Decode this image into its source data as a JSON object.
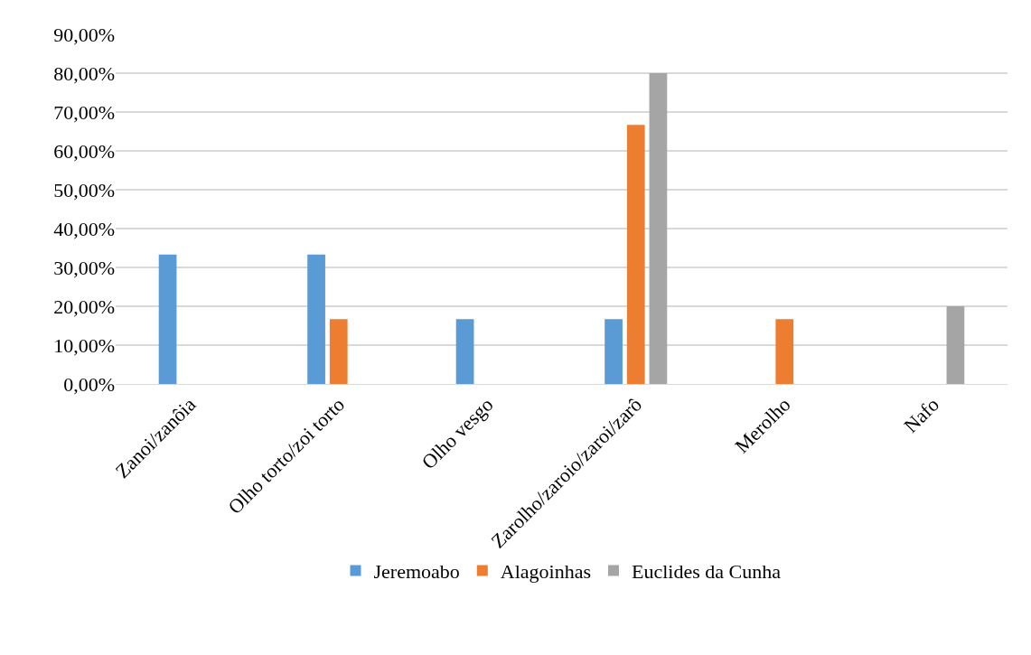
{
  "chart_data": {
    "type": "bar",
    "categories": [
      "Zanoi/zanôia",
      "Olho torto/zoi torto",
      "Olho vesgo",
      "Zarolho/zaroio/zaroi/zarô",
      "Merolho",
      "Nafo"
    ],
    "series": [
      {
        "name": "Jeremoabo",
        "color": "#5b9bd5",
        "values": [
          33.33,
          33.33,
          16.67,
          16.67,
          null,
          null
        ]
      },
      {
        "name": "Alagoinhas",
        "color": "#ed7d31",
        "values": [
          null,
          16.67,
          null,
          66.67,
          16.67,
          null
        ]
      },
      {
        "name": "Euclides da Cunha",
        "color": "#a5a5a5",
        "values": [
          null,
          null,
          null,
          80,
          null,
          20
        ]
      }
    ],
    "ylim": [
      0,
      90
    ],
    "yticks": [
      {
        "value": 0,
        "label": "0,00%"
      },
      {
        "value": 10,
        "label": "10,00%"
      },
      {
        "value": 20,
        "label": "20,00%"
      },
      {
        "value": 30,
        "label": "30,00%"
      },
      {
        "value": 40,
        "label": "40,00%"
      },
      {
        "value": 50,
        "label": "50,00%"
      },
      {
        "value": 60,
        "label": "60,00%"
      },
      {
        "value": 70,
        "label": "70,00%"
      },
      {
        "value": 80,
        "label": "80,00%"
      },
      {
        "value": 90,
        "label": "90,00%"
      }
    ],
    "grid": "y",
    "legend": "bottom"
  }
}
